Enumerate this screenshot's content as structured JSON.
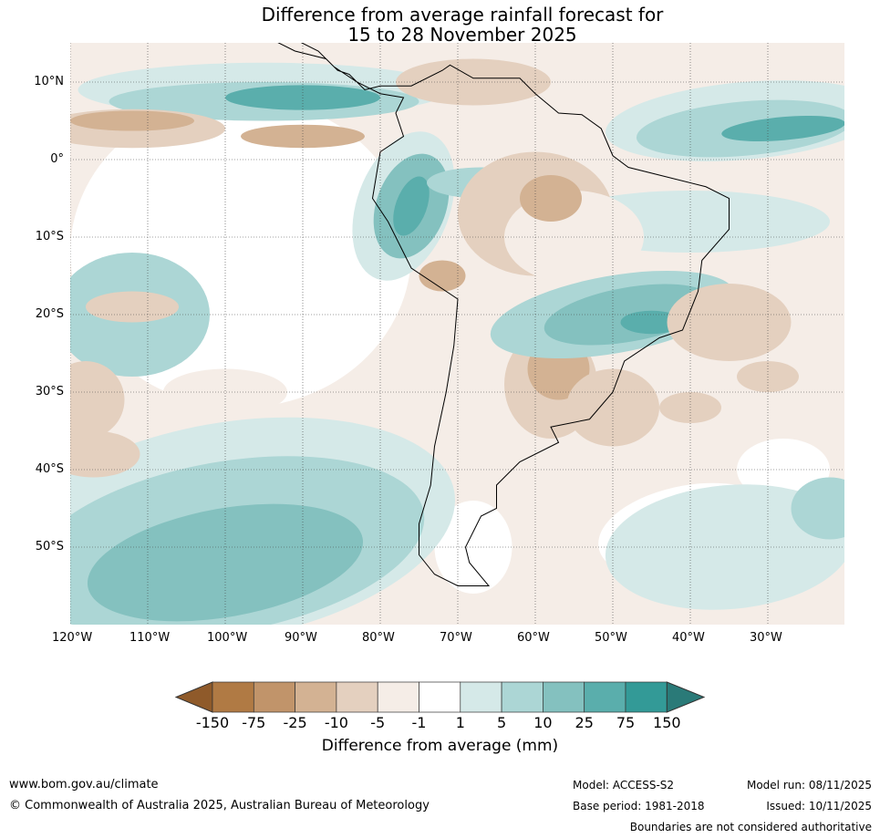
{
  "title_line1": "Difference from average rainfall forecast for",
  "title_line2": "15 to 28 November 2025",
  "lat_ticks": [
    {
      "value": 10,
      "label": "10°N"
    },
    {
      "value": 0,
      "label": "0°"
    },
    {
      "value": -10,
      "label": "10°S"
    },
    {
      "value": -20,
      "label": "20°S"
    },
    {
      "value": -30,
      "label": "30°S"
    },
    {
      "value": -40,
      "label": "40°S"
    },
    {
      "value": -50,
      "label": "50°S"
    }
  ],
  "lon_ticks": [
    {
      "value": -120,
      "label": "120°W"
    },
    {
      "value": -110,
      "label": "110°W"
    },
    {
      "value": -100,
      "label": "100°W"
    },
    {
      "value": -90,
      "label": "90°W"
    },
    {
      "value": -80,
      "label": "80°W"
    },
    {
      "value": -70,
      "label": "70°W"
    },
    {
      "value": -60,
      "label": "60°W"
    },
    {
      "value": -50,
      "label": "50°W"
    },
    {
      "value": -40,
      "label": "40°W"
    },
    {
      "value": -30,
      "label": "30°W"
    }
  ],
  "colorbar": {
    "labels": [
      "-150",
      "-75",
      "-25",
      "-10",
      "-5",
      "-1",
      "1",
      "5",
      "10",
      "25",
      "75",
      "150"
    ],
    "colors": [
      "#b07a44",
      "#c1946a",
      "#d3b293",
      "#e4d0bf",
      "#f5ede7",
      "#ffffff",
      "#d5e9e8",
      "#acd6d5",
      "#84c1bf",
      "#5aaeac",
      "#339a97"
    ],
    "under_color": "#8f5a2a",
    "over_color": "#2a7a78",
    "title": "Difference from average (mm)"
  },
  "footer": {
    "website": "www.bom.gov.au/climate",
    "copyright": "© Commonwealth of Australia 2025, Australian Bureau of Meteorology",
    "model": "Model: ACCESS-S2",
    "model_run": "Model run: 08/11/2025",
    "base_period": "Base period: 1981-2018",
    "issued": "Issued: 10/11/2025",
    "disclaimer": "Boundaries are not considered authoritative"
  }
}
